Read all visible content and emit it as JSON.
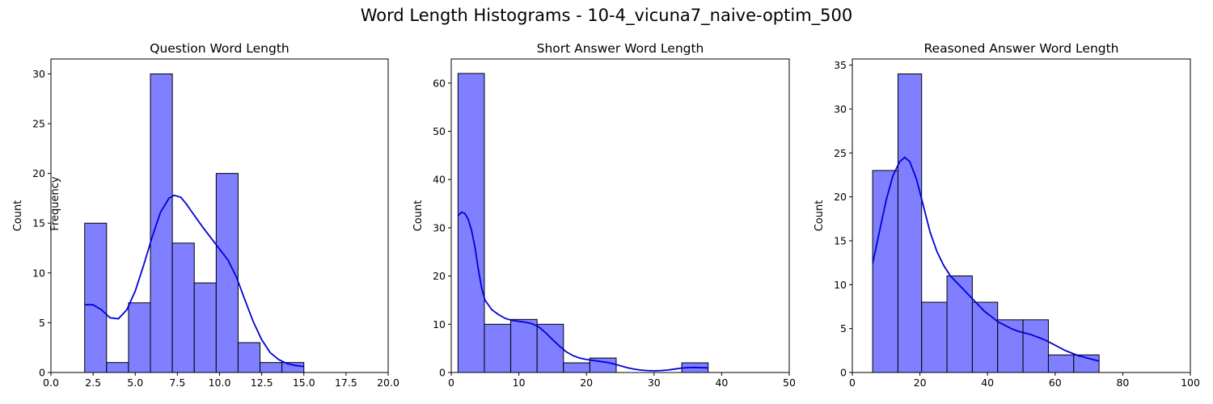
{
  "figure_title": "Word Length Histograms - 10-4_vicuna7_naive-optim_500",
  "stray_label": "Frequency",
  "colors": {
    "bar_fill": "#7f7fff",
    "bar_edge": "#000000",
    "kde_line": "#0000d6",
    "axis": "#000000"
  },
  "chart_data": [
    {
      "type": "bar",
      "title": "Question Word Length",
      "xlabel": "",
      "ylabel": "Count",
      "xlim": [
        0,
        20
      ],
      "ylim": [
        0,
        31.5
      ],
      "xticks": [
        0,
        2.5,
        5,
        7.5,
        10,
        12.5,
        15,
        17.5,
        20
      ],
      "xtick_labels": [
        "0.0",
        "2.5",
        "5.0",
        "7.5",
        "10.0",
        "12.5",
        "15.0",
        "17.5",
        "20.0"
      ],
      "yticks": [
        0,
        5,
        10,
        15,
        20,
        25,
        30
      ],
      "ytick_labels": [
        "0",
        "5",
        "10",
        "15",
        "20",
        "25",
        "30"
      ],
      "bins": [
        {
          "x0": 2.0,
          "x1": 3.3,
          "count": 15
        },
        {
          "x0": 3.3,
          "x1": 4.6,
          "count": 1
        },
        {
          "x0": 4.6,
          "x1": 5.9,
          "count": 7
        },
        {
          "x0": 5.9,
          "x1": 7.2,
          "count": 30
        },
        {
          "x0": 7.2,
          "x1": 8.5,
          "count": 13
        },
        {
          "x0": 8.5,
          "x1": 9.8,
          "count": 9
        },
        {
          "x0": 9.8,
          "x1": 11.1,
          "count": 20
        },
        {
          "x0": 11.1,
          "x1": 12.4,
          "count": 3
        },
        {
          "x0": 12.4,
          "x1": 13.7,
          "count": 1
        },
        {
          "x0": 13.7,
          "x1": 15.0,
          "count": 1
        }
      ],
      "kde": [
        [
          2,
          6.8
        ],
        [
          2.5,
          6.8
        ],
        [
          3,
          6.3
        ],
        [
          3.5,
          5.5
        ],
        [
          4,
          5.4
        ],
        [
          4.5,
          6.3
        ],
        [
          5,
          8.2
        ],
        [
          5.5,
          10.8
        ],
        [
          6,
          13.6
        ],
        [
          6.5,
          16.1
        ],
        [
          7,
          17.5
        ],
        [
          7.3,
          17.8
        ],
        [
          7.7,
          17.6
        ],
        [
          8,
          17.0
        ],
        [
          8.5,
          15.8
        ],
        [
          9,
          14.6
        ],
        [
          9.5,
          13.5
        ],
        [
          10,
          12.4
        ],
        [
          10.5,
          11.3
        ],
        [
          11,
          9.6
        ],
        [
          11.5,
          7.3
        ],
        [
          12,
          5.1
        ],
        [
          12.5,
          3.3
        ],
        [
          13,
          2.0
        ],
        [
          13.5,
          1.3
        ],
        [
          14,
          0.9
        ],
        [
          14.5,
          0.7
        ],
        [
          15,
          0.6
        ]
      ]
    },
    {
      "type": "bar",
      "title": "Short Answer Word Length",
      "xlabel": "",
      "ylabel": "Count",
      "xlim": [
        0,
        50
      ],
      "ylim": [
        0,
        65
      ],
      "xticks": [
        0,
        10,
        20,
        30,
        40,
        50
      ],
      "xtick_labels": [
        "0",
        "10",
        "20",
        "30",
        "40",
        "50"
      ],
      "yticks": [
        0,
        10,
        20,
        30,
        40,
        50,
        60
      ],
      "ytick_labels": [
        "0",
        "10",
        "20",
        "30",
        "40",
        "50",
        "60"
      ],
      "bins": [
        {
          "x0": 1.0,
          "x1": 4.9,
          "count": 62
        },
        {
          "x0": 4.9,
          "x1": 8.8,
          "count": 10
        },
        {
          "x0": 8.8,
          "x1": 12.7,
          "count": 11
        },
        {
          "x0": 12.7,
          "x1": 16.6,
          "count": 10
        },
        {
          "x0": 16.6,
          "x1": 20.5,
          "count": 2
        },
        {
          "x0": 20.5,
          "x1": 24.4,
          "count": 3
        },
        {
          "x0": 24.4,
          "x1": 28.3,
          "count": 0
        },
        {
          "x0": 28.3,
          "x1": 32.2,
          "count": 0
        },
        {
          "x0": 32.2,
          "x1": 34.1,
          "count": 0
        },
        {
          "x0": 34.1,
          "x1": 38.0,
          "count": 2
        }
      ],
      "kde": [
        [
          1,
          32.5
        ],
        [
          1.5,
          33.2
        ],
        [
          2,
          33.0
        ],
        [
          2.5,
          31.8
        ],
        [
          3,
          29.5
        ],
        [
          3.5,
          26.0
        ],
        [
          4,
          21.5
        ],
        [
          4.5,
          17.5
        ],
        [
          5,
          15.0
        ],
        [
          6,
          13.0
        ],
        [
          7,
          12.0
        ],
        [
          8,
          11.2
        ],
        [
          9,
          10.8
        ],
        [
          10,
          10.6
        ],
        [
          11,
          10.4
        ],
        [
          12,
          10.1
        ],
        [
          13,
          9.4
        ],
        [
          14,
          8.2
        ],
        [
          15,
          6.8
        ],
        [
          16,
          5.5
        ],
        [
          17,
          4.3
        ],
        [
          18,
          3.5
        ],
        [
          19,
          3.0
        ],
        [
          20,
          2.7
        ],
        [
          21,
          2.5
        ],
        [
          22,
          2.3
        ],
        [
          23,
          2.1
        ],
        [
          24,
          1.8
        ],
        [
          25,
          1.4
        ],
        [
          26,
          1.0
        ],
        [
          27,
          0.7
        ],
        [
          28,
          0.5
        ],
        [
          29,
          0.4
        ],
        [
          30,
          0.35
        ],
        [
          31,
          0.4
        ],
        [
          32,
          0.5
        ],
        [
          33,
          0.7
        ],
        [
          34,
          0.9
        ],
        [
          35,
          1.0
        ],
        [
          36,
          1.05
        ],
        [
          37,
          1.0
        ],
        [
          38,
          0.95
        ]
      ]
    },
    {
      "type": "bar",
      "title": "Reasoned Answer Word Length",
      "xlabel": "",
      "ylabel": "Count",
      "xlim": [
        0,
        100
      ],
      "ylim": [
        0,
        35.7
      ],
      "xticks": [
        0,
        20,
        40,
        60,
        80,
        100
      ],
      "xtick_labels": [
        "0",
        "20",
        "40",
        "60",
        "80",
        "100"
      ],
      "yticks": [
        0,
        5,
        10,
        15,
        20,
        25,
        30,
        35
      ],
      "ytick_labels": [
        "0",
        "5",
        "10",
        "15",
        "20",
        "25",
        "30",
        "35"
      ],
      "bins": [
        {
          "x0": 6.0,
          "x1": 13.5,
          "count": 23
        },
        {
          "x0": 13.5,
          "x1": 20.5,
          "count": 34
        },
        {
          "x0": 20.5,
          "x1": 28.0,
          "count": 8
        },
        {
          "x0": 28.0,
          "x1": 35.5,
          "count": 11
        },
        {
          "x0": 35.5,
          "x1": 43.0,
          "count": 8
        },
        {
          "x0": 43.0,
          "x1": 50.5,
          "count": 6
        },
        {
          "x0": 50.5,
          "x1": 58.0,
          "count": 6
        },
        {
          "x0": 58.0,
          "x1": 65.5,
          "count": 2
        },
        {
          "x0": 65.5,
          "x1": 73.0,
          "count": 2
        }
      ],
      "kde": [
        [
          6,
          12.4
        ],
        [
          8,
          16.0
        ],
        [
          10,
          19.6
        ],
        [
          12,
          22.4
        ],
        [
          14,
          24.0
        ],
        [
          15.5,
          24.5
        ],
        [
          17,
          24.0
        ],
        [
          19,
          22.0
        ],
        [
          21,
          19.0
        ],
        [
          23,
          16.0
        ],
        [
          25,
          13.8
        ],
        [
          27,
          12.2
        ],
        [
          29,
          11.0
        ],
        [
          31,
          10.2
        ],
        [
          33,
          9.4
        ],
        [
          35,
          8.6
        ],
        [
          37,
          7.8
        ],
        [
          39,
          7.0
        ],
        [
          41,
          6.4
        ],
        [
          43,
          5.8
        ],
        [
          45,
          5.4
        ],
        [
          47,
          5.0
        ],
        [
          49,
          4.7
        ],
        [
          51,
          4.5
        ],
        [
          53,
          4.3
        ],
        [
          55,
          4.0
        ],
        [
          57,
          3.7
        ],
        [
          59,
          3.3
        ],
        [
          61,
          2.9
        ],
        [
          63,
          2.5
        ],
        [
          65,
          2.2
        ],
        [
          67,
          1.9
        ],
        [
          69,
          1.7
        ],
        [
          71,
          1.5
        ],
        [
          73,
          1.3
        ]
      ]
    }
  ]
}
